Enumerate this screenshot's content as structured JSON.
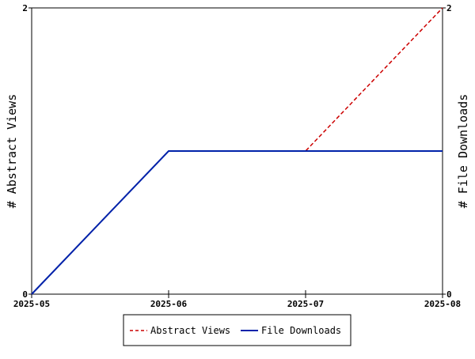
{
  "chart_data": {
    "type": "line",
    "x": [
      "2025-05",
      "2025-06",
      "2025-07",
      "2025-08"
    ],
    "series": [
      {
        "name": "Abstract Views",
        "values": [
          0,
          1,
          1,
          2
        ],
        "color": "#cc0000",
        "axis": "left",
        "dash": "dashed"
      },
      {
        "name": "File Downloads",
        "values": [
          0,
          1,
          1,
          1
        ],
        "color": "#0022aa",
        "axis": "right",
        "dash": "solid"
      }
    ],
    "ylabel_left": "# Abstract Views",
    "ylabel_right": "# File Downloads",
    "ylim": [
      0,
      2
    ],
    "y_ticks": [
      "0",
      "2"
    ],
    "y2lim": [
      0,
      2
    ],
    "y2_ticks": [
      "0",
      "2"
    ],
    "grid": false,
    "legend_position": "bottom"
  }
}
